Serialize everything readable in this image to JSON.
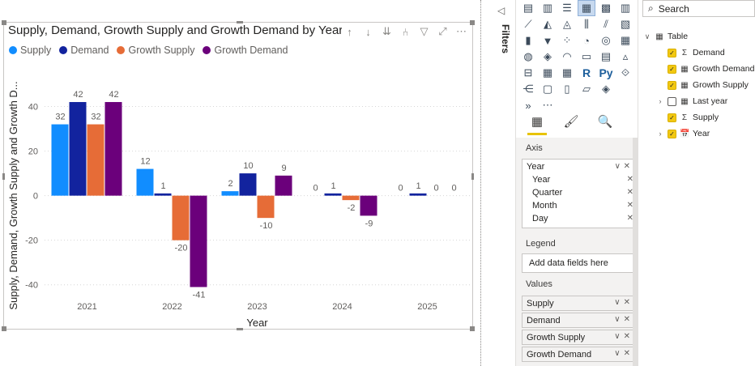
{
  "visual": {
    "title": "Supply, Demand, Growth Supply and Growth Demand by Year",
    "toolbar": [
      "↑",
      "↓",
      "⇊",
      "⑃",
      "▽",
      "⤢",
      "⋯"
    ]
  },
  "chart_data": {
    "type": "bar",
    "title": "Supply, Demand, Growth Supply and Growth Demand by Year",
    "xlabel": "Year",
    "ylabel": "Supply, Demand, Growth Supply and Growth D...",
    "ylim": [
      -47,
      50
    ],
    "yticks": [
      40,
      20,
      0,
      -20,
      -40
    ],
    "categories": [
      "2021",
      "2022",
      "2023",
      "2024",
      "2025"
    ],
    "series": [
      {
        "name": "Supply",
        "color": "#118dff",
        "values": [
          32,
          12,
          2,
          0,
          0
        ]
      },
      {
        "name": "Demand",
        "color": "#12239e",
        "values": [
          42,
          1,
          10,
          1,
          1
        ]
      },
      {
        "name": "Growth Supply",
        "color": "#e66c37",
        "values": [
          32,
          -20,
          -10,
          -2,
          0
        ]
      },
      {
        "name": "Growth Demand",
        "color": "#6b007b",
        "values": [
          42,
          -41,
          9,
          -9,
          0
        ]
      }
    ],
    "labels": [
      [
        "32",
        "12",
        "2",
        "0",
        "0"
      ],
      [
        "42",
        "1",
        "10",
        "1",
        "1"
      ],
      [
        "32",
        "-20",
        "-10",
        "-2",
        "0"
      ],
      [
        "42",
        "-41",
        "9",
        "-9",
        "0"
      ]
    ],
    "grid": true,
    "legend": "top-left"
  },
  "filters": {
    "label": "Filters",
    "collapse_icon": "◁"
  },
  "viz": {
    "icons": [
      "bar-chart-icon",
      "column-chart-icon",
      "stacked-bar-icon",
      "clustered-column-icon",
      "stacked-column-100-icon",
      "clustered-bar-icon",
      "line-chart-icon",
      "area-chart-icon",
      "stacked-area-icon",
      "line-column-icon",
      "line-column-stacked-icon",
      "ribbon-chart-icon",
      "waterfall-icon",
      "funnel-icon",
      "scatter-icon",
      "pie-chart-icon",
      "donut-chart-icon",
      "treemap-icon",
      "map-icon",
      "filled-map-icon",
      "gauge-icon",
      "card-icon",
      "multi-row-card-icon",
      "kpi-icon",
      "slicer-icon",
      "table-icon",
      "matrix-icon",
      "r-visual-icon",
      "python-visual-icon",
      "key-influencers-icon",
      "decomposition-tree-icon",
      "qa-icon",
      "smart-narrative-icon",
      "paginated-report-icon",
      "power-apps-icon",
      "",
      "power-automate-icon",
      "more-icon"
    ],
    "glyphs": [
      "▤",
      "▥",
      "☰",
      "▦",
      "▩",
      "▥",
      "⟋",
      "◭",
      "◬",
      "⫼",
      "⫽",
      "▧",
      "▮",
      "▼",
      "⁘",
      "◔",
      "◎",
      "▦",
      "◍",
      "◈",
      "◠",
      "▭",
      "▤",
      "▵",
      "⊟",
      "▦",
      "▦",
      "R",
      "Py",
      "⟐",
      "⋲",
      "▢",
      "▯",
      "▱",
      "◈",
      "",
      "»",
      "⋯"
    ],
    "selected_index": 3,
    "tabs": [
      "fields-tab-icon",
      "format-tab-icon",
      "analytics-tab-icon"
    ],
    "tab_glyphs": [
      "▦",
      "🖌",
      "🔍"
    ],
    "axis": {
      "heading": "Axis",
      "field": "Year",
      "levels": [
        "Year",
        "Quarter",
        "Month",
        "Day"
      ]
    },
    "legend": {
      "heading": "Legend",
      "placeholder": "Add data fields here"
    },
    "values": {
      "heading": "Values",
      "fields": [
        "Supply",
        "Demand",
        "Growth Supply",
        "Growth Demand"
      ]
    },
    "pill_controls": [
      "∨",
      "✕"
    ]
  },
  "fields": {
    "search_placeholder": "Search",
    "table_name": "Table",
    "items": [
      {
        "name": "Demand",
        "checked": true,
        "icon": "Σ"
      },
      {
        "name": "Growth Demand",
        "checked": true,
        "icon": "▦"
      },
      {
        "name": "Growth Supply",
        "checked": true,
        "icon": "▦"
      },
      {
        "name": "Last year",
        "checked": false,
        "icon": "▦",
        "expandable": true
      },
      {
        "name": "Supply",
        "checked": true,
        "icon": "Σ"
      },
      {
        "name": "Year",
        "checked": true,
        "icon": "📅",
        "expandable": true
      }
    ]
  }
}
